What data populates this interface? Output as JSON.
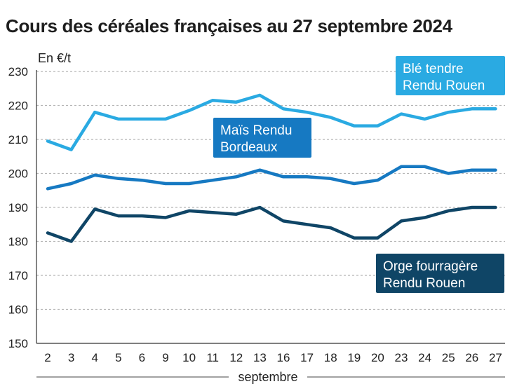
{
  "chart_data": {
    "type": "line",
    "title": "Cours des céréales françaises au 27 septembre 2024",
    "unit_label": "En €/t",
    "xlabel": "septembre",
    "categories": [
      "2",
      "3",
      "4",
      "5",
      "6",
      "9",
      "10",
      "11",
      "12",
      "13",
      "16",
      "17",
      "18",
      "19",
      "20",
      "23",
      "24",
      "25",
      "26",
      "27"
    ],
    "ylim": [
      150,
      230
    ],
    "yticks": [
      150,
      160,
      170,
      180,
      190,
      200,
      210,
      220,
      230
    ],
    "grid": true,
    "series": [
      {
        "name_lines": [
          "Blé tendre",
          "Rendu Rouen"
        ],
        "color": "#2aaae2",
        "values": [
          209.5,
          207,
          218,
          216,
          216,
          216,
          218.5,
          221.5,
          221,
          223,
          219,
          218,
          216.5,
          214,
          214,
          217.5,
          216,
          218,
          219,
          219
        ]
      },
      {
        "name_lines": [
          "Maïs Rendu",
          "Bordeaux"
        ],
        "color": "#1679c2",
        "values": [
          195.5,
          197,
          199.5,
          198.5,
          198,
          197,
          197,
          198,
          199,
          201,
          199,
          199,
          198.5,
          197,
          198,
          202,
          202,
          200,
          201,
          201
        ]
      },
      {
        "name_lines": [
          "Orge fourragère",
          "Rendu Rouen"
        ],
        "color": "#0f4566",
        "values": [
          182.5,
          180,
          189.5,
          187.5,
          187.5,
          187,
          189,
          188.5,
          188,
          190,
          186,
          185,
          184,
          181,
          181,
          186,
          187,
          189,
          190,
          190
        ]
      }
    ]
  }
}
